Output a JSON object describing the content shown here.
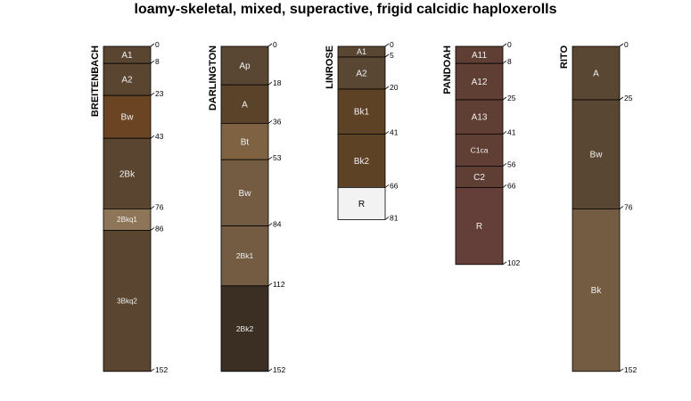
{
  "title": "loamy-skeletal, mixed, superactive, frigid calcidic haploxerolls",
  "profiles": [
    {
      "name": "BREITENBACH",
      "max_depth": 152,
      "horizons": [
        {
          "label": "A1",
          "top": 0,
          "bottom": 8,
          "color": "#5a4630"
        },
        {
          "label": "A2",
          "top": 8,
          "bottom": 23,
          "color": "#5a4630"
        },
        {
          "label": "Bw",
          "top": 23,
          "bottom": 43,
          "color": "#6b4423"
        },
        {
          "label": "2Bk",
          "top": 43,
          "bottom": 76,
          "color": "#5a4630"
        },
        {
          "label": "2Bkq1",
          "top": 76,
          "bottom": 86,
          "color": "#8e7558"
        },
        {
          "label": "3Bkq2",
          "top": 86,
          "bottom": 152,
          "color": "#5a4630"
        }
      ],
      "depth_ticks": [
        "0",
        "8",
        "23",
        "43",
        "76",
        "86",
        "152"
      ]
    },
    {
      "name": "DARLINGTON",
      "max_depth": 152,
      "horizons": [
        {
          "label": "Ap",
          "top": 0,
          "bottom": 18,
          "color": "#594734"
        },
        {
          "label": "A",
          "top": 18,
          "bottom": 36,
          "color": "#5b4329"
        },
        {
          "label": "Bt",
          "top": 36,
          "bottom": 53,
          "color": "#7e6242"
        },
        {
          "label": "Bw",
          "top": 53,
          "bottom": 84,
          "color": "#745c42"
        },
        {
          "label": "2Bk1",
          "top": 84,
          "bottom": 112,
          "color": "#745c42"
        },
        {
          "label": "2Bk2",
          "top": 112,
          "bottom": 152,
          "color": "#3b2e22"
        }
      ],
      "depth_ticks": [
        "0",
        "18",
        "36",
        "53",
        "84",
        "112",
        "152"
      ]
    },
    {
      "name": "LINROSE",
      "max_depth": 81,
      "horizons": [
        {
          "label": "A1",
          "top": 0,
          "bottom": 5,
          "color": "#594734"
        },
        {
          "label": "A2",
          "top": 5,
          "bottom": 20,
          "color": "#594734"
        },
        {
          "label": "Bk1",
          "top": 20,
          "bottom": 41,
          "color": "#5e4226"
        },
        {
          "label": "Bk2",
          "top": 41,
          "bottom": 66,
          "color": "#5e4226"
        },
        {
          "label": "R",
          "top": 66,
          "bottom": 81,
          "color": "#f2f2f2"
        }
      ],
      "depth_ticks": [
        "0",
        "5",
        "20",
        "41",
        "66",
        "81"
      ]
    },
    {
      "name": "PANDOAH",
      "max_depth": 102,
      "horizons": [
        {
          "label": "A11",
          "top": 0,
          "bottom": 8,
          "color": "#5f3e33"
        },
        {
          "label": "A12",
          "top": 8,
          "bottom": 25,
          "color": "#5f3e33"
        },
        {
          "label": "A13",
          "top": 25,
          "bottom": 41,
          "color": "#5f3e33"
        },
        {
          "label": "C1ca",
          "top": 41,
          "bottom": 56,
          "color": "#5f3e33"
        },
        {
          "label": "C2",
          "top": 56,
          "bottom": 66,
          "color": "#5f3e33"
        },
        {
          "label": "R",
          "top": 66,
          "bottom": 102,
          "color": "#643f39"
        }
      ],
      "depth_ticks": [
        "0",
        "8",
        "25",
        "41",
        "56",
        "66",
        "102"
      ]
    },
    {
      "name": "RITO",
      "max_depth": 152,
      "horizons": [
        {
          "label": "A",
          "top": 0,
          "bottom": 25,
          "color": "#594734"
        },
        {
          "label": "Bw",
          "top": 25,
          "bottom": 76,
          "color": "#594734"
        },
        {
          "label": "Bk",
          "top": 76,
          "bottom": 152,
          "color": "#745c42"
        }
      ],
      "depth_ticks": [
        "0",
        "25",
        "76",
        "152"
      ]
    }
  ]
}
